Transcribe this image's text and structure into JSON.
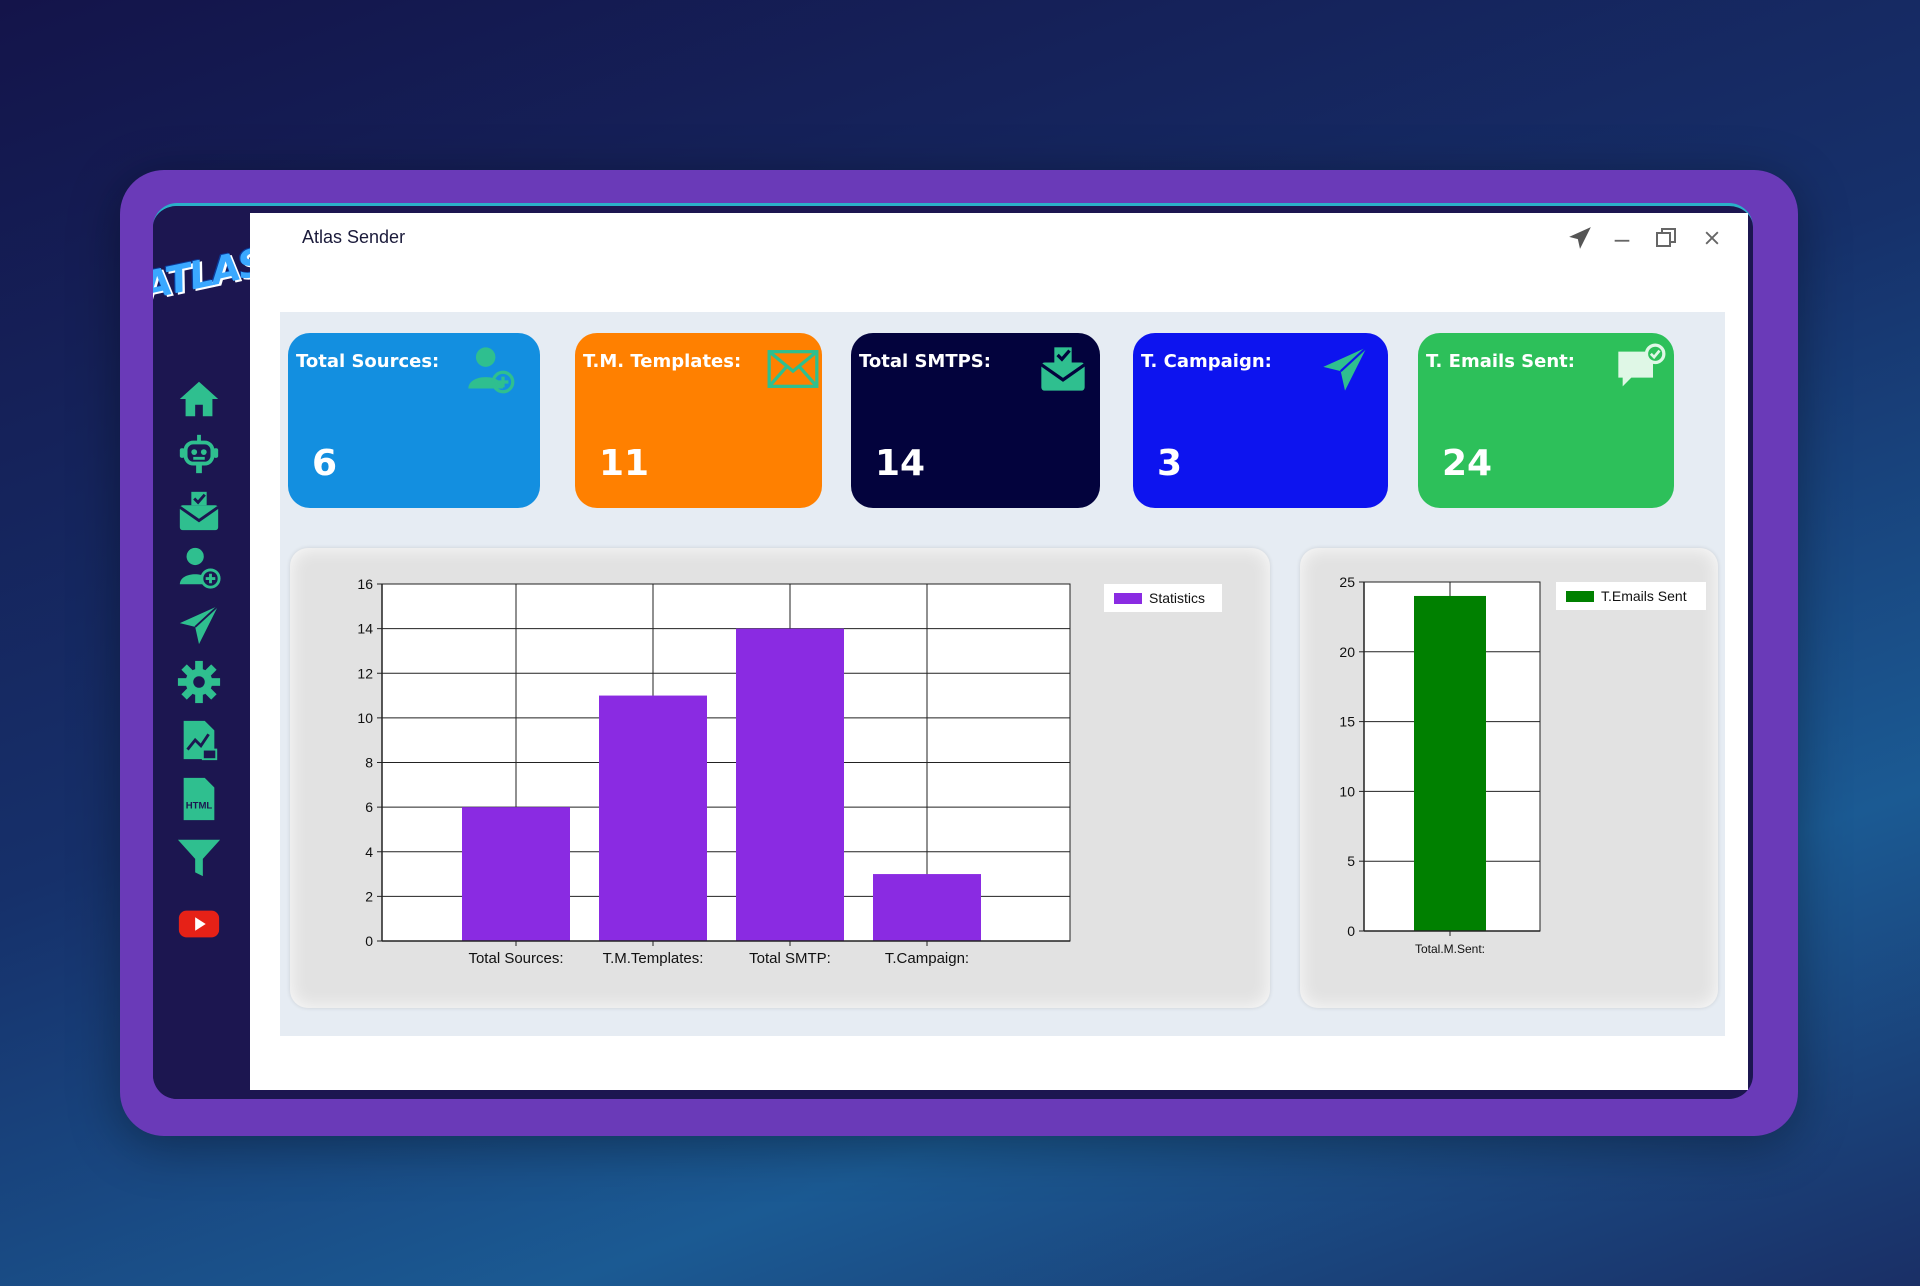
{
  "window": {
    "title": "Atlas Sender"
  },
  "logo": {
    "text": "ATLAS"
  },
  "sidebar": {
    "items": [
      {
        "name": "home",
        "icon": "home-icon"
      },
      {
        "name": "bot",
        "icon": "robot-icon"
      },
      {
        "name": "smtp",
        "icon": "mail-box-icon"
      },
      {
        "name": "sources",
        "icon": "add-user-icon"
      },
      {
        "name": "campaign",
        "icon": "paper-plane-icon"
      },
      {
        "name": "settings",
        "icon": "gear-icon"
      },
      {
        "name": "reports",
        "icon": "chart-file-icon"
      },
      {
        "name": "html",
        "icon": "html-file-icon",
        "label": "HTML"
      },
      {
        "name": "filter",
        "icon": "filter-icon"
      },
      {
        "name": "youtube",
        "icon": "youtube-icon"
      }
    ],
    "accent": "#2fbf8f"
  },
  "cards": [
    {
      "label": "Total Sources:",
      "value": "6",
      "color": "#138fe0",
      "icon": "add-user-icon"
    },
    {
      "label": "T.M. Templates:",
      "value": "11",
      "color": "#ff8000",
      "icon": "envelope-icon"
    },
    {
      "label": "Total SMTPS:",
      "value": "14",
      "color": "#03033d",
      "icon": "mail-box-icon"
    },
    {
      "label": "T. Campaign:",
      "value": "3",
      "color": "#0d14ef",
      "icon": "paper-plane-icon"
    },
    {
      "label": "T. Emails Sent:",
      "value": "24",
      "color": "#2dc05a",
      "icon": "chat-check-icon"
    }
  ],
  "chart_data": [
    {
      "type": "bar",
      "categories": [
        "Total Sources:",
        "T.M.Templates:",
        "Total SMTP:",
        "T.Campaign:"
      ],
      "series": [
        {
          "name": "Statistics",
          "values": [
            6,
            11,
            14,
            3
          ],
          "color": "#8a2be2"
        }
      ],
      "ylim": [
        0,
        16
      ],
      "yticks": [
        "0",
        "2",
        "4",
        "6",
        "8",
        "10",
        "12",
        "14",
        "16"
      ],
      "grid": true,
      "legend": "top-right"
    },
    {
      "type": "bar",
      "categories": [
        "Total.M.Sent:"
      ],
      "series": [
        {
          "name": "T.Emails Sent",
          "values": [
            24
          ],
          "color": "#008000"
        }
      ],
      "ylim": [
        0,
        25
      ],
      "yticks": [
        "0",
        "5",
        "10",
        "15",
        "20",
        "25"
      ],
      "grid": true,
      "legend": "top-right"
    }
  ]
}
